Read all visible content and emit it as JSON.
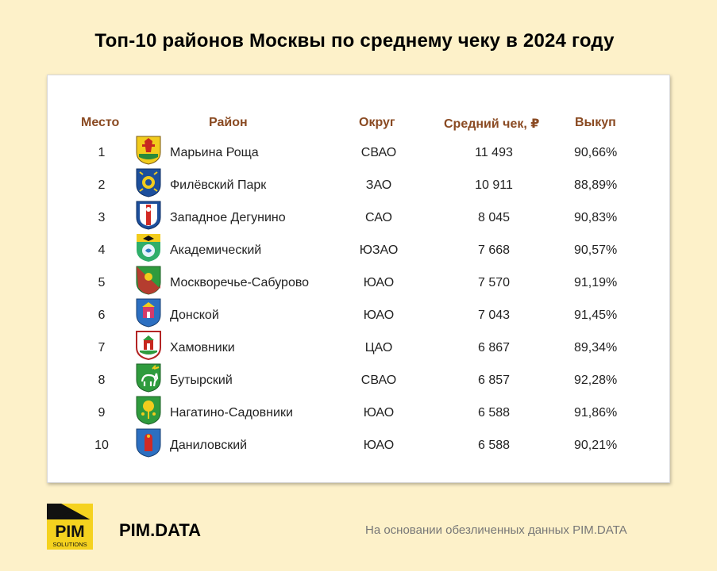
{
  "title": "Топ-10 районов Москвы по среднему чеку в 2024 году",
  "table": {
    "headers": {
      "rank": "Место",
      "district": "Район",
      "okrug": "Округ",
      "avg_check": "Средний чек, ₽",
      "buyout": "Выкуп"
    },
    "rows": [
      {
        "rank": "1",
        "district": "Марьина  Роща",
        "okrug": "СВАО",
        "avg_check": "11 493",
        "buyout": "90,66%",
        "emblem_icon": "marina-roshcha-coat-of-arms-icon"
      },
      {
        "rank": "2",
        "district": "Филёвский  Парк",
        "okrug": "ЗАО",
        "avg_check": "10 911",
        "buyout": "88,89%",
        "emblem_icon": "filevsky-park-coat-of-arms-icon"
      },
      {
        "rank": "3",
        "district": "Западное Дегунино",
        "okrug": "САО",
        "avg_check": "8 045",
        "buyout": "90,83%",
        "emblem_icon": "zapadnoe-degunino-coat-of-arms-icon"
      },
      {
        "rank": "4",
        "district": "Академический",
        "okrug": "ЮЗАО",
        "avg_check": "7 668",
        "buyout": "90,57%",
        "emblem_icon": "akademichesky-coat-of-arms-icon"
      },
      {
        "rank": "5",
        "district": "Москворечье-Сабурово",
        "okrug": "ЮАО",
        "avg_check": "7 570",
        "buyout": "91,19%",
        "emblem_icon": "moskvorechye-saburovo-coat-of-arms-icon"
      },
      {
        "rank": "6",
        "district": "Донской",
        "okrug": "ЮАО",
        "avg_check": "7 043",
        "buyout": "91,45%",
        "emblem_icon": "donskoy-coat-of-arms-icon"
      },
      {
        "rank": "7",
        "district": "Хамовники",
        "okrug": "ЦАО",
        "avg_check": "6 867",
        "buyout": "89,34%",
        "emblem_icon": "khamovniki-coat-of-arms-icon"
      },
      {
        "rank": "8",
        "district": "Бутырский",
        "okrug": "СВАО",
        "avg_check": "6 857",
        "buyout": "92,28%",
        "emblem_icon": "butyrsky-coat-of-arms-icon"
      },
      {
        "rank": "9",
        "district": "Нагатино-Садовники",
        "okrug": "ЮАО",
        "avg_check": "6 588",
        "buyout": "91,86%",
        "emblem_icon": "nagatino-sadovniki-coat-of-arms-icon"
      },
      {
        "rank": "10",
        "district": "Даниловский",
        "okrug": "ЮАО",
        "avg_check": "6 588",
        "buyout": "90,21%",
        "emblem_icon": "danilovsky-coat-of-arms-icon"
      }
    ]
  },
  "footer": {
    "logo_text_main": "PIM",
    "logo_text_sub": "SOLUTIONS",
    "brand": "PIM.DATA",
    "note": "На основании обезличенных данных PIM.DATA"
  },
  "colors": {
    "background": "#fdf1c9",
    "header_text": "#8a4a22",
    "logo_yellow": "#f5d21f",
    "logo_black": "#111111"
  }
}
